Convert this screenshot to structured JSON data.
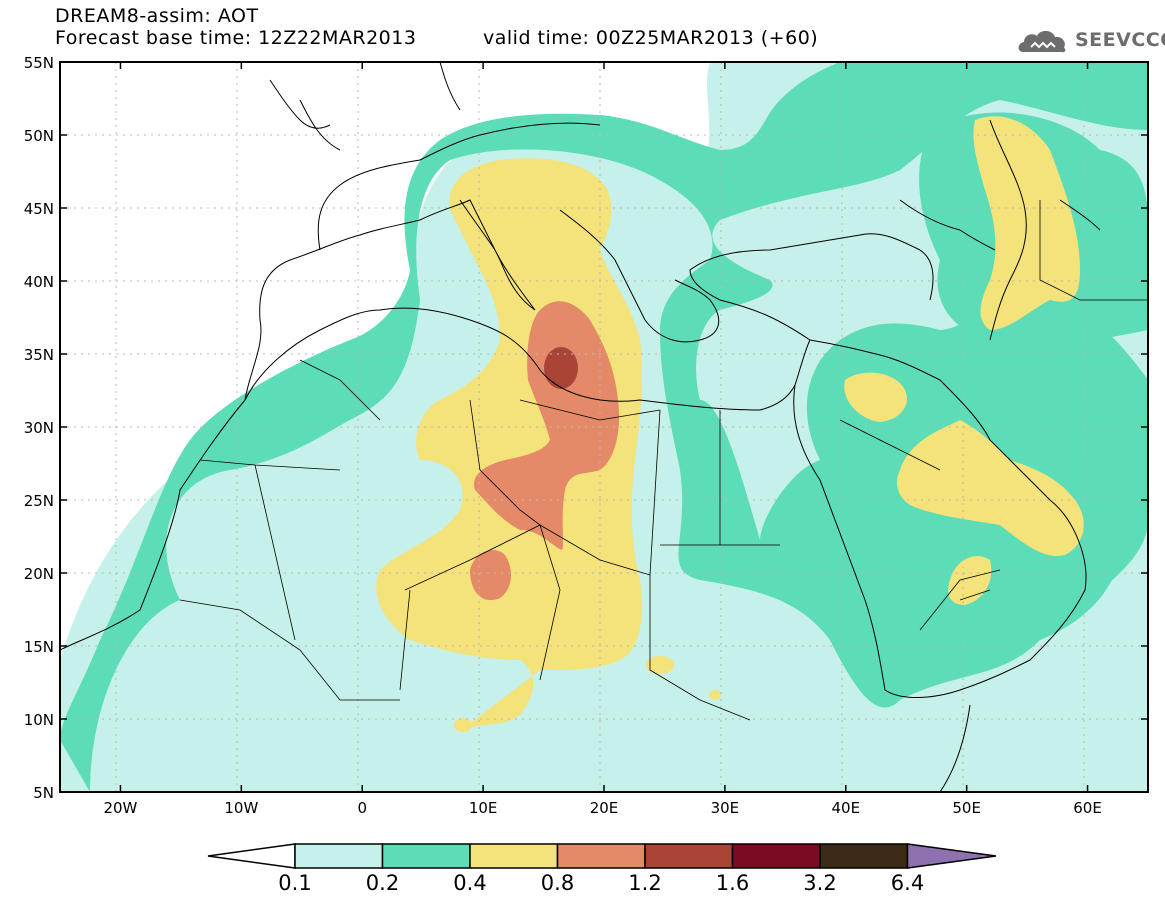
{
  "header": {
    "model_line": "DREAM8-assim: AOT",
    "base_time_line": "Forecast base time: 12Z22MAR2013",
    "valid_time_line": "valid time: 00Z25MAR2013 (+60)",
    "brand": "SEEVCCC"
  },
  "map": {
    "lon_range": [
      -25,
      65
    ],
    "lat_range": [
      5,
      55
    ],
    "lat_ticks": [
      {
        "value": 55,
        "label": "55N"
      },
      {
        "value": 50,
        "label": "50N"
      },
      {
        "value": 45,
        "label": "45N"
      },
      {
        "value": 40,
        "label": "40N"
      },
      {
        "value": 35,
        "label": "35N"
      },
      {
        "value": 30,
        "label": "30N"
      },
      {
        "value": 25,
        "label": "25N"
      },
      {
        "value": 20,
        "label": "20N"
      },
      {
        "value": 15,
        "label": "15N"
      },
      {
        "value": 10,
        "label": "10N"
      },
      {
        "value": 5,
        "label": "5N"
      }
    ],
    "lon_ticks": [
      {
        "value": -20,
        "label": "20W"
      },
      {
        "value": -10,
        "label": "10W"
      },
      {
        "value": 0,
        "label": "0"
      },
      {
        "value": 10,
        "label": "10E"
      },
      {
        "value": 20,
        "label": "20E"
      },
      {
        "value": 30,
        "label": "30E"
      },
      {
        "value": 40,
        "label": "40E"
      },
      {
        "value": 50,
        "label": "50E"
      },
      {
        "value": 60,
        "label": "60E"
      }
    ],
    "grid": true,
    "field": "Aerosol optical thickness (AOT)"
  },
  "colorbar": {
    "levels": [
      "0.1",
      "0.2",
      "0.4",
      "0.8",
      "1.2",
      "1.6",
      "3.2",
      "6.4"
    ],
    "colors": [
      "#ffffff",
      "#c6f0ea",
      "#5ddcb8",
      "#f4e27a",
      "#e48a68",
      "#a94436",
      "#7a0b23",
      "#3d2a14",
      "#8e72b0"
    ],
    "extend": "both"
  },
  "colors": {
    "aot_01_02": "#c6f0ea",
    "aot_02_04": "#5ddcb8",
    "aot_04_08": "#f4e27a",
    "aot_08_12": "#e48a68",
    "aot_12_16": "#a94436",
    "brand_gray": "#6d6d6d"
  }
}
